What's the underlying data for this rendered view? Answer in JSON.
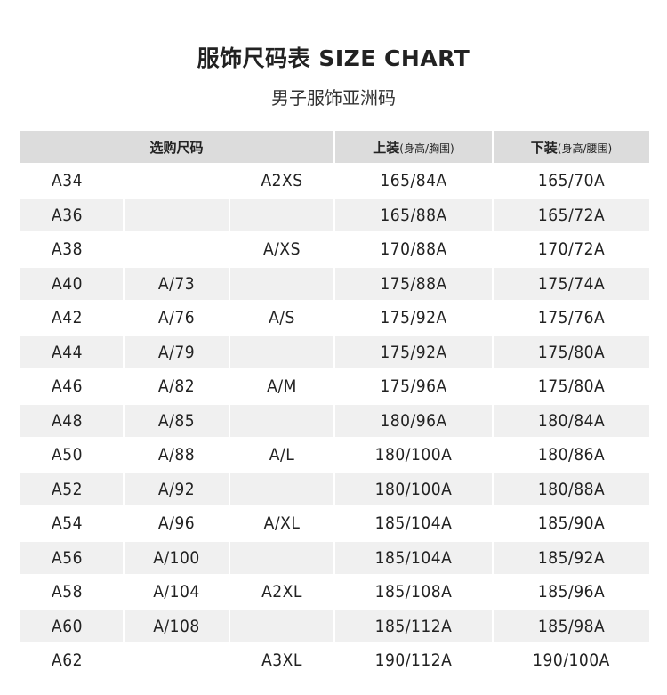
{
  "title": "服饰尺码表 SIZE CHART",
  "subtitle": "男子服饰亚洲码",
  "headers": {
    "select_size": "选购尺码",
    "top": "上装",
    "top_sub": "(身高/胸围)",
    "bottom": "下装",
    "bottom_sub": "(身高/腰围)"
  },
  "rows": [
    [
      "A34",
      "",
      "A2XS",
      "165/84A",
      "165/70A"
    ],
    [
      "A36",
      "",
      "",
      "165/88A",
      "165/72A"
    ],
    [
      "A38",
      "",
      "A/XS",
      "170/88A",
      "170/72A"
    ],
    [
      "A40",
      "A/73",
      "",
      "175/88A",
      "175/74A"
    ],
    [
      "A42",
      "A/76",
      "A/S",
      "175/92A",
      "175/76A"
    ],
    [
      "A44",
      "A/79",
      "",
      "175/92A",
      "175/80A"
    ],
    [
      "A46",
      "A/82",
      "A/M",
      "175/96A",
      "175/80A"
    ],
    [
      "A48",
      "A/85",
      "",
      "180/96A",
      "180/84A"
    ],
    [
      "A50",
      "A/88",
      "A/L",
      "180/100A",
      "180/86A"
    ],
    [
      "A52",
      "A/92",
      "",
      "180/100A",
      "180/88A"
    ],
    [
      "A54",
      "A/96",
      "A/XL",
      "185/104A",
      "185/90A"
    ],
    [
      "A56",
      "A/100",
      "",
      "185/104A",
      "185/92A"
    ],
    [
      "A58",
      "A/104",
      "A2XL",
      "185/108A",
      "185/96A"
    ],
    [
      "A60",
      "A/108",
      "",
      "185/112A",
      "185/98A"
    ],
    [
      "A62",
      "",
      "A3XL",
      "190/112A",
      "190/100A"
    ]
  ]
}
